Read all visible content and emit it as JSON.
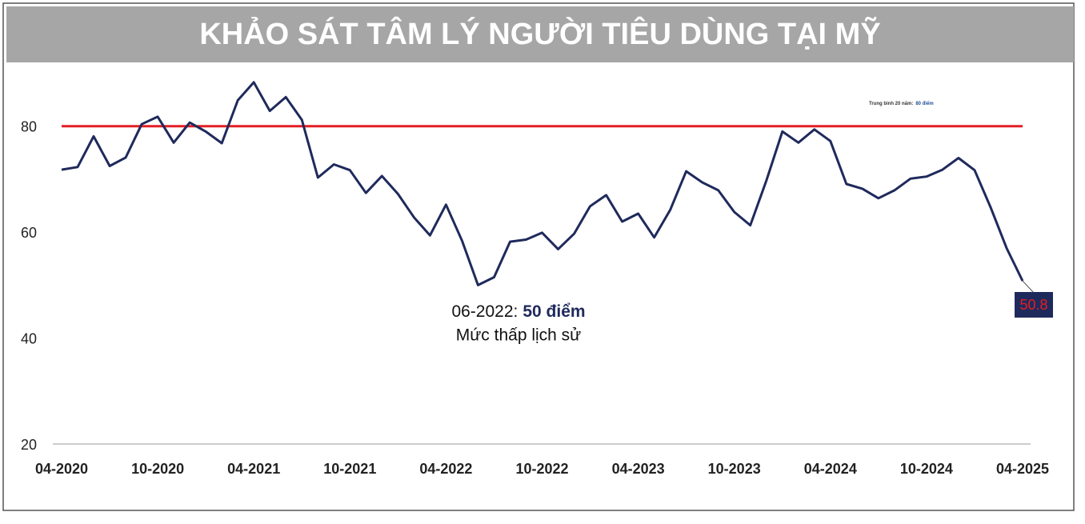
{
  "chart_data": {
    "type": "line",
    "title": "KHẢO SÁT TÂM LÝ NGƯỜI TIÊU DÙNG TẠI MỸ",
    "x": [
      "04-2020",
      "05-2020",
      "06-2020",
      "07-2020",
      "08-2020",
      "09-2020",
      "10-2020",
      "11-2020",
      "12-2020",
      "01-2021",
      "02-2021",
      "03-2021",
      "04-2021",
      "05-2021",
      "06-2021",
      "07-2021",
      "08-2021",
      "09-2021",
      "10-2021",
      "11-2021",
      "12-2021",
      "01-2022",
      "02-2022",
      "03-2022",
      "04-2022",
      "05-2022",
      "06-2022",
      "07-2022",
      "08-2022",
      "09-2022",
      "10-2022",
      "11-2022",
      "12-2022",
      "01-2023",
      "02-2023",
      "03-2023",
      "04-2023",
      "05-2023",
      "06-2023",
      "07-2023",
      "08-2023",
      "09-2023",
      "10-2023",
      "11-2023",
      "12-2023",
      "01-2024",
      "02-2024",
      "03-2024",
      "04-2024",
      "05-2024",
      "06-2024",
      "07-2024",
      "08-2024",
      "09-2024",
      "10-2024",
      "11-2024",
      "12-2024",
      "01-2025",
      "02-2025",
      "03-2025",
      "04-2025"
    ],
    "series": [
      {
        "color": "#1f2a5c",
        "values": [
          71.8,
          72.3,
          78.1,
          72.5,
          74.1,
          80.4,
          81.8,
          76.9,
          80.7,
          79.0,
          76.8,
          84.9,
          88.3,
          82.9,
          85.5,
          81.2,
          70.3,
          72.8,
          71.7,
          67.4,
          70.6,
          67.2,
          62.8,
          59.4,
          65.2,
          58.4,
          50.0,
          51.5,
          58.2,
          58.6,
          59.9,
          56.8,
          59.7,
          64.9,
          67.0,
          62.0,
          63.5,
          59.0,
          64.2,
          71.5,
          69.4,
          67.9,
          63.8,
          61.3,
          69.7,
          79.0,
          76.9,
          79.4,
          77.2,
          69.1,
          68.2,
          66.4,
          67.9,
          70.1,
          70.5,
          71.8,
          74.0,
          71.7,
          64.7,
          57.0,
          50.8
        ]
      }
    ],
    "xticks": [
      "04-2020",
      "10-2020",
      "04-2021",
      "10-2021",
      "04-2022",
      "10-2022",
      "04-2023",
      "10-2023",
      "04-2024",
      "10-2024",
      "04-2025"
    ],
    "ylim": [
      20,
      90
    ],
    "yticks": [
      20,
      40,
      60,
      80
    ],
    "reference_line": {
      "value": 80,
      "color": "#e31e24",
      "label": "Trung bình 20 năm:",
      "label_value": "80 điểm"
    },
    "annotation": {
      "text": "06-2022:",
      "highlight": "50 điểm",
      "subtext": "Mức thấp lịch sử"
    }
  }
}
